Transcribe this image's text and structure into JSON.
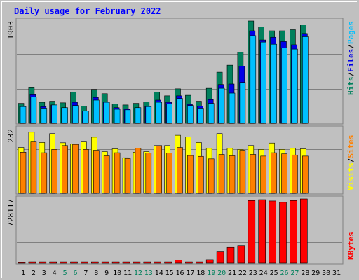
{
  "title": "Daily usage for February 2022",
  "colors": {
    "background": "#c0c0c0",
    "title": "#0000ff",
    "hits": "#00805c",
    "files": "#0000e6",
    "pages": "#00c0ff",
    "visits": "#ffff00",
    "sites": "#ff8000",
    "kbytes": "#ff0000"
  },
  "chart_data": [
    {
      "type": "bar",
      "name": "hits-files-pages",
      "categories": [
        "1",
        "2",
        "3",
        "4",
        "5",
        "6",
        "7",
        "8",
        "9",
        "10",
        "11",
        "12",
        "13",
        "14",
        "15",
        "16",
        "17",
        "18",
        "19",
        "20",
        "21",
        "22",
        "23",
        "24",
        "25",
        "26",
        "27",
        "28",
        "29",
        "30",
        "31"
      ],
      "ymax_label": "1903",
      "ylim": [
        0,
        1903
      ],
      "series": [
        {
          "name": "Hits",
          "values": [
            370,
            660,
            390,
            410,
            380,
            580,
            320,
            630,
            550,
            360,
            340,
            370,
            400,
            580,
            510,
            640,
            520,
            410,
            650,
            950,
            1080,
            1320,
            1903,
            1790,
            1720,
            1720,
            1740,
            1830,
            0,
            0,
            0
          ]
        },
        {
          "name": "Files",
          "values": [
            310,
            530,
            310,
            340,
            290,
            390,
            230,
            480,
            400,
            290,
            270,
            290,
            320,
            430,
            390,
            510,
            350,
            320,
            440,
            720,
            730,
            1060,
            1720,
            1550,
            1600,
            1520,
            1460,
            1670,
            0,
            0,
            0
          ]
        },
        {
          "name": "Pages",
          "values": [
            310,
            490,
            280,
            340,
            290,
            330,
            230,
            430,
            390,
            260,
            250,
            290,
            310,
            390,
            360,
            460,
            330,
            280,
            370,
            650,
            560,
            760,
            1630,
            1510,
            1470,
            1400,
            1380,
            1610,
            0,
            0,
            0
          ]
        }
      ]
    },
    {
      "type": "bar",
      "name": "visits-sites",
      "categories": [
        "1",
        "2",
        "3",
        "4",
        "5",
        "6",
        "7",
        "8",
        "9",
        "10",
        "11",
        "12",
        "13",
        "14",
        "15",
        "16",
        "17",
        "18",
        "19",
        "20",
        "21",
        "22",
        "23",
        "24",
        "25",
        "26",
        "27",
        "28",
        "29",
        "30",
        "31"
      ],
      "ymax_label": "232",
      "ylim": [
        0,
        232
      ],
      "series": [
        {
          "name": "Visits",
          "values": [
            165,
            220,
            183,
            215,
            182,
            178,
            185,
            202,
            150,
            160,
            128,
            148,
            150,
            172,
            172,
            209,
            203,
            183,
            162,
            215,
            162,
            158,
            172,
            158,
            181,
            158,
            162,
            160,
            0,
            0,
            0
          ]
        },
        {
          "name": "Sites",
          "values": [
            148,
            185,
            146,
            158,
            172,
            176,
            158,
            155,
            135,
            146,
            125,
            163,
            145,
            172,
            145,
            165,
            136,
            133,
            124,
            140,
            135,
            155,
            140,
            134,
            146,
            142,
            138,
            134,
            0,
            0,
            0
          ]
        }
      ]
    },
    {
      "type": "bar",
      "name": "kbytes",
      "categories": [
        "1",
        "2",
        "3",
        "4",
        "5",
        "6",
        "7",
        "8",
        "9",
        "10",
        "11",
        "12",
        "13",
        "14",
        "15",
        "16",
        "17",
        "18",
        "19",
        "20",
        "21",
        "22",
        "23",
        "24",
        "25",
        "26",
        "27",
        "28",
        "29",
        "30",
        "31"
      ],
      "ymax_label": "728117",
      "ylim": [
        0,
        728117
      ],
      "series": [
        {
          "name": "KBytes",
          "values": [
            8000,
            15000,
            15000,
            15000,
            15000,
            15000,
            15000,
            15000,
            15000,
            15000,
            15000,
            15000,
            15000,
            15000,
            15000,
            35000,
            15000,
            15000,
            40000,
            130000,
            180000,
            200000,
            710000,
            720000,
            705000,
            690000,
            710000,
            728117,
            0,
            0,
            0
          ]
        }
      ]
    }
  ],
  "x_labels": [
    "1",
    "2",
    "3",
    "4",
    "5",
    "6",
    "7",
    "8",
    "9",
    "10",
    "11",
    "12",
    "13",
    "14",
    "15",
    "16",
    "17",
    "18",
    "19",
    "20",
    "21",
    "22",
    "23",
    "24",
    "25",
    "26",
    "27",
    "28",
    "29",
    "30",
    "31"
  ],
  "x_label_colors": {
    "weekday": "#000000",
    "weekend": "#00805c",
    "weekend_days": [
      "5",
      "6",
      "12",
      "13",
      "19",
      "20",
      "26",
      "27"
    ]
  },
  "legend": {
    "top": [
      {
        "text": "Hits",
        "color": "#00805c"
      },
      {
        "text": "/",
        "color": "#000000"
      },
      {
        "text": "Files",
        "color": "#0000e6"
      },
      {
        "text": "/",
        "color": "#000000"
      },
      {
        "text": "Pages",
        "color": "#00c0ff"
      }
    ],
    "middle": [
      {
        "text": "Visits",
        "color": "#ffff00"
      },
      {
        "text": "/",
        "color": "#000000"
      },
      {
        "text": "Sites",
        "color": "#ff8000"
      }
    ],
    "bottom": [
      {
        "text": "KBytes",
        "color": "#ff0000"
      }
    ]
  }
}
